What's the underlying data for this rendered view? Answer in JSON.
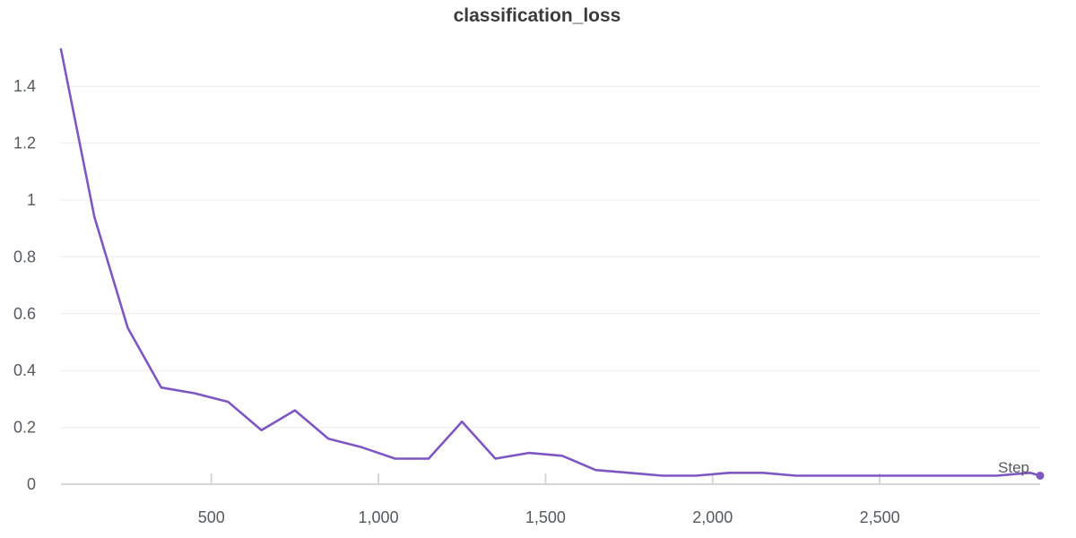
{
  "colors": {
    "series": "#7e57c2",
    "grid": "#ececec",
    "axis": "#d6d6d6",
    "text": "#555a61",
    "title": "#3b3b3b"
  },
  "chart_data": {
    "type": "line",
    "title": "classification_loss",
    "xlabel": "Step",
    "ylabel": "",
    "xlim": [
      50,
      2980
    ],
    "ylim": [
      0,
      1.53
    ],
    "grid": true,
    "x_ticks": [
      500,
      1000,
      1500,
      2000,
      2500
    ],
    "x_tick_labels": [
      "500",
      "1,000",
      "1,500",
      "2,000",
      "2,500"
    ],
    "y_ticks": [
      0,
      0.2,
      0.4,
      0.6,
      0.8,
      1,
      1.2,
      1.4
    ],
    "y_tick_labels": [
      "0",
      "0.2",
      "0.4",
      "0.6",
      "0.8",
      "1",
      "1.2",
      "1.4"
    ],
    "series": [
      {
        "name": "",
        "color": "#7e57c2",
        "x": [
          50,
          150,
          250,
          350,
          450,
          550,
          650,
          750,
          850,
          950,
          1050,
          1150,
          1250,
          1350,
          1450,
          1550,
          1650,
          1750,
          1850,
          1950,
          2050,
          2150,
          2250,
          2350,
          2450,
          2550,
          2650,
          2750,
          2850,
          2950,
          2980
        ],
        "y": [
          1.53,
          0.94,
          0.55,
          0.34,
          0.32,
          0.29,
          0.19,
          0.26,
          0.16,
          0.13,
          0.09,
          0.09,
          0.22,
          0.09,
          0.11,
          0.1,
          0.05,
          0.04,
          0.03,
          0.03,
          0.04,
          0.04,
          0.03,
          0.03,
          0.03,
          0.03,
          0.03,
          0.03,
          0.03,
          0.04,
          0.03
        ]
      }
    ]
  }
}
